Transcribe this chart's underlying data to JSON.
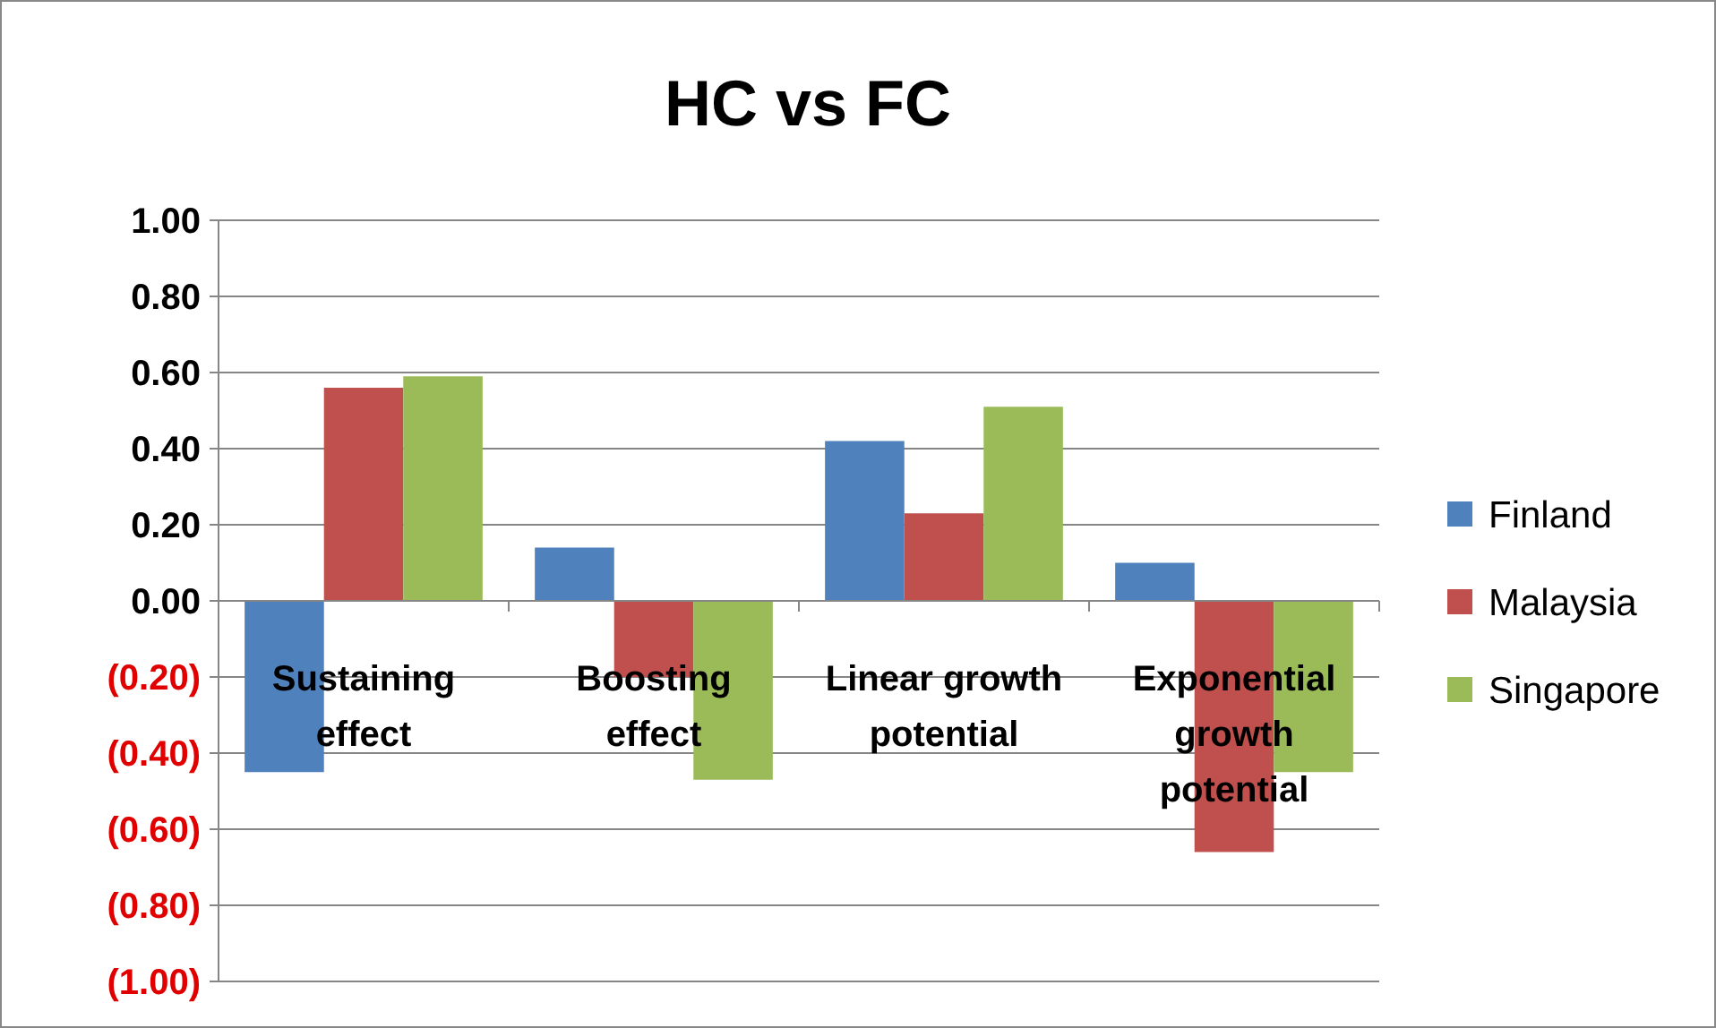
{
  "chart_data": {
    "type": "bar",
    "title": "HC vs FC",
    "categories": [
      "Sustaining effect",
      "Boosting effect",
      "Linear growth potential",
      "Exponential growth potential"
    ],
    "series": [
      {
        "name": "Finland",
        "color": "#4f81bd",
        "values": [
          -0.45,
          0.14,
          0.42,
          0.1
        ]
      },
      {
        "name": "Malaysia",
        "color": "#c0504d",
        "values": [
          0.56,
          -0.2,
          0.23,
          -0.66
        ]
      },
      {
        "name": "Singapore",
        "color": "#9bbb59",
        "values": [
          0.59,
          -0.47,
          0.51,
          -0.45
        ]
      }
    ],
    "ylim": [
      -1,
      1
    ],
    "yticks": [
      {
        "value": -1,
        "label": "(1.00)"
      },
      {
        "value": -0.8,
        "label": "(0.80)"
      },
      {
        "value": -0.6,
        "label": "(0.60)"
      },
      {
        "value": -0.4,
        "label": "(0.40)"
      },
      {
        "value": -0.2,
        "label": "(0.20)"
      },
      {
        "value": 0,
        "label": "0.00"
      },
      {
        "value": 0.2,
        "label": "0.20"
      },
      {
        "value": 0.4,
        "label": "0.40"
      },
      {
        "value": 0.6,
        "label": "0.60"
      },
      {
        "value": 0.8,
        "label": "0.80"
      },
      {
        "value": 1,
        "label": "1.00"
      }
    ],
    "grid": "y",
    "legend": "right"
  }
}
